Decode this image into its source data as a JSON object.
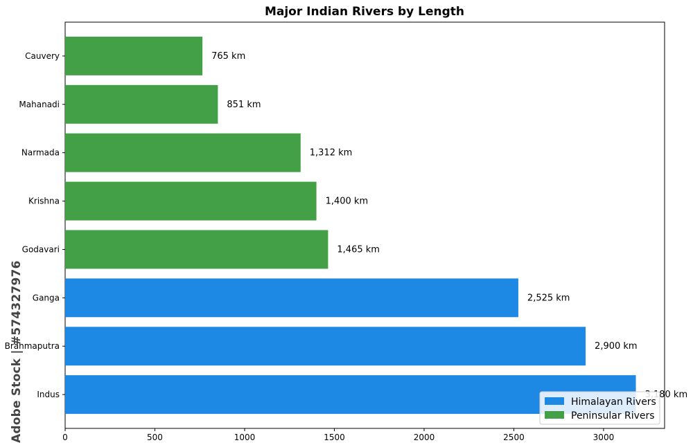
{
  "chart_data": {
    "type": "bar",
    "orientation": "horizontal",
    "title": "Major Indian Rivers by Length",
    "xlabel": "",
    "ylabel": "",
    "xlim": [
      0,
      3340
    ],
    "xticks": [
      0,
      500,
      1000,
      1500,
      2000,
      2500,
      3000
    ],
    "grid": false,
    "legend_placement": "lower-right",
    "unit_suffix": " km",
    "categories": [
      "Indus",
      "Brahmaputra",
      "Ganga",
      "Godavari",
      "Krishna",
      "Narmada",
      "Mahanadi",
      "Cauvery"
    ],
    "values": [
      3180,
      2900,
      2525,
      1465,
      1400,
      1312,
      851,
      765
    ],
    "value_labels": [
      "3,180 km",
      "2,900 km",
      "2,525 km",
      "1,465 km",
      "1,400 km",
      "1,312 km",
      "851 km",
      "765 km"
    ],
    "groups": [
      "Himalayan Rivers",
      "Himalayan Rivers",
      "Himalayan Rivers",
      "Peninsular Rivers",
      "Peninsular Rivers",
      "Peninsular Rivers",
      "Peninsular Rivers",
      "Peninsular Rivers"
    ],
    "legend": [
      {
        "name": "Himalayan Rivers",
        "color": "#1e88e5"
      },
      {
        "name": "Peninsular Rivers",
        "color": "#43a047"
      }
    ]
  },
  "watermark": "Adobe Stock | #574327976"
}
